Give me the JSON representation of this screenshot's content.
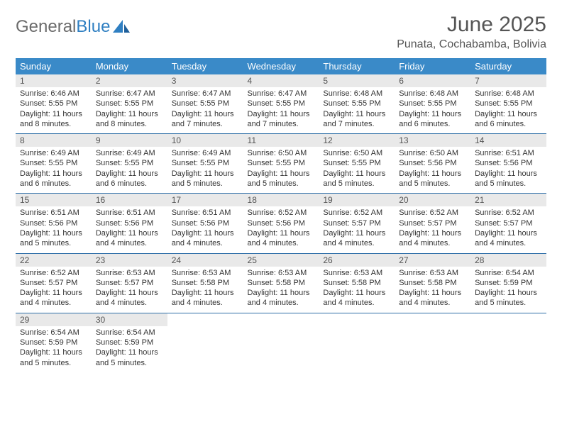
{
  "logo": {
    "text1": "General",
    "text2": "Blue"
  },
  "title": "June 2025",
  "location": "Punata, Cochabamba, Bolivia",
  "colors": {
    "header_bg": "#3a8ac8",
    "header_fg": "#ffffff",
    "daynum_bg": "#e9e9e9",
    "sep": "#2f6fa8",
    "logo_gray": "#6b6b6b",
    "logo_blue": "#2f7fc2"
  },
  "day_headers": [
    "Sunday",
    "Monday",
    "Tuesday",
    "Wednesday",
    "Thursday",
    "Friday",
    "Saturday"
  ],
  "weeks": [
    [
      {
        "n": "1",
        "sr": "6:46 AM",
        "ss": "5:55 PM",
        "dl": "11 hours and 8 minutes."
      },
      {
        "n": "2",
        "sr": "6:47 AM",
        "ss": "5:55 PM",
        "dl": "11 hours and 8 minutes."
      },
      {
        "n": "3",
        "sr": "6:47 AM",
        "ss": "5:55 PM",
        "dl": "11 hours and 7 minutes."
      },
      {
        "n": "4",
        "sr": "6:47 AM",
        "ss": "5:55 PM",
        "dl": "11 hours and 7 minutes."
      },
      {
        "n": "5",
        "sr": "6:48 AM",
        "ss": "5:55 PM",
        "dl": "11 hours and 7 minutes."
      },
      {
        "n": "6",
        "sr": "6:48 AM",
        "ss": "5:55 PM",
        "dl": "11 hours and 6 minutes."
      },
      {
        "n": "7",
        "sr": "6:48 AM",
        "ss": "5:55 PM",
        "dl": "11 hours and 6 minutes."
      }
    ],
    [
      {
        "n": "8",
        "sr": "6:49 AM",
        "ss": "5:55 PM",
        "dl": "11 hours and 6 minutes."
      },
      {
        "n": "9",
        "sr": "6:49 AM",
        "ss": "5:55 PM",
        "dl": "11 hours and 6 minutes."
      },
      {
        "n": "10",
        "sr": "6:49 AM",
        "ss": "5:55 PM",
        "dl": "11 hours and 5 minutes."
      },
      {
        "n": "11",
        "sr": "6:50 AM",
        "ss": "5:55 PM",
        "dl": "11 hours and 5 minutes."
      },
      {
        "n": "12",
        "sr": "6:50 AM",
        "ss": "5:55 PM",
        "dl": "11 hours and 5 minutes."
      },
      {
        "n": "13",
        "sr": "6:50 AM",
        "ss": "5:56 PM",
        "dl": "11 hours and 5 minutes."
      },
      {
        "n": "14",
        "sr": "6:51 AM",
        "ss": "5:56 PM",
        "dl": "11 hours and 5 minutes."
      }
    ],
    [
      {
        "n": "15",
        "sr": "6:51 AM",
        "ss": "5:56 PM",
        "dl": "11 hours and 5 minutes."
      },
      {
        "n": "16",
        "sr": "6:51 AM",
        "ss": "5:56 PM",
        "dl": "11 hours and 4 minutes."
      },
      {
        "n": "17",
        "sr": "6:51 AM",
        "ss": "5:56 PM",
        "dl": "11 hours and 4 minutes."
      },
      {
        "n": "18",
        "sr": "6:52 AM",
        "ss": "5:56 PM",
        "dl": "11 hours and 4 minutes."
      },
      {
        "n": "19",
        "sr": "6:52 AM",
        "ss": "5:57 PM",
        "dl": "11 hours and 4 minutes."
      },
      {
        "n": "20",
        "sr": "6:52 AM",
        "ss": "5:57 PM",
        "dl": "11 hours and 4 minutes."
      },
      {
        "n": "21",
        "sr": "6:52 AM",
        "ss": "5:57 PM",
        "dl": "11 hours and 4 minutes."
      }
    ],
    [
      {
        "n": "22",
        "sr": "6:52 AM",
        "ss": "5:57 PM",
        "dl": "11 hours and 4 minutes."
      },
      {
        "n": "23",
        "sr": "6:53 AM",
        "ss": "5:57 PM",
        "dl": "11 hours and 4 minutes."
      },
      {
        "n": "24",
        "sr": "6:53 AM",
        "ss": "5:58 PM",
        "dl": "11 hours and 4 minutes."
      },
      {
        "n": "25",
        "sr": "6:53 AM",
        "ss": "5:58 PM",
        "dl": "11 hours and 4 minutes."
      },
      {
        "n": "26",
        "sr": "6:53 AM",
        "ss": "5:58 PM",
        "dl": "11 hours and 4 minutes."
      },
      {
        "n": "27",
        "sr": "6:53 AM",
        "ss": "5:58 PM",
        "dl": "11 hours and 4 minutes."
      },
      {
        "n": "28",
        "sr": "6:54 AM",
        "ss": "5:59 PM",
        "dl": "11 hours and 5 minutes."
      }
    ],
    [
      {
        "n": "29",
        "sr": "6:54 AM",
        "ss": "5:59 PM",
        "dl": "11 hours and 5 minutes."
      },
      {
        "n": "30",
        "sr": "6:54 AM",
        "ss": "5:59 PM",
        "dl": "11 hours and 5 minutes."
      },
      null,
      null,
      null,
      null,
      null
    ]
  ],
  "labels": {
    "sunrise": "Sunrise: ",
    "sunset": "Sunset: ",
    "daylight": "Daylight: "
  }
}
